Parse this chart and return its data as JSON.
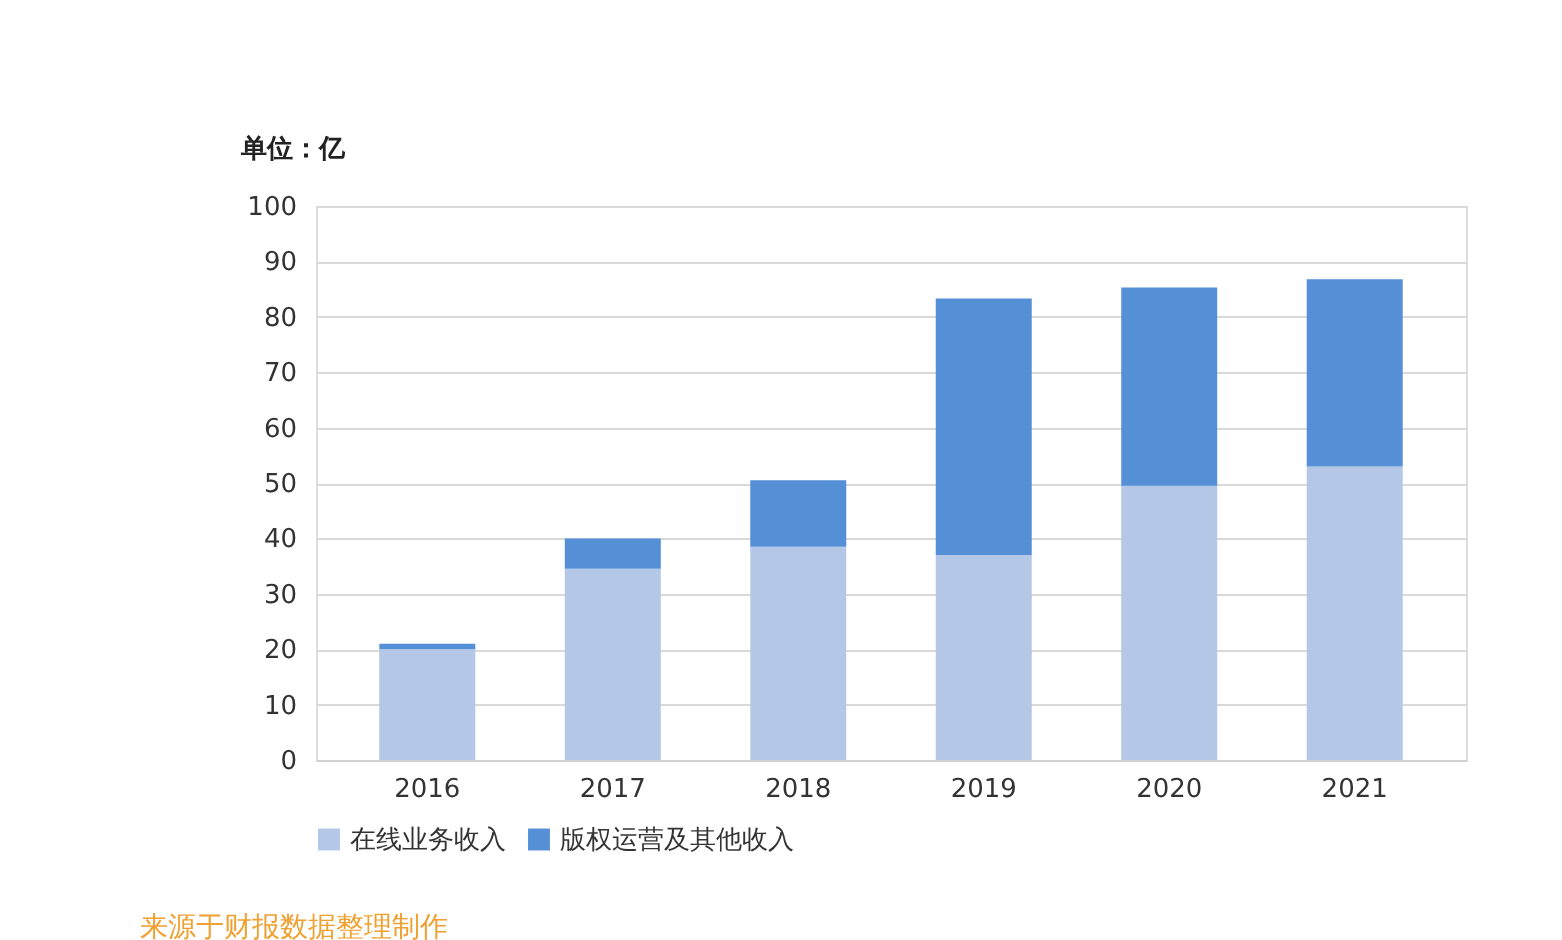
{
  "chart_data": {
    "type": "bar",
    "stacked": true,
    "ylabel": "单位：亿",
    "categories": [
      "2016",
      "2017",
      "2018",
      "2019",
      "2020",
      "2021"
    ],
    "series": [
      {
        "name": "在线业务收入",
        "color": "#b4c7e7",
        "values": [
          20,
          34.5,
          38.5,
          37,
          49.5,
          53
        ]
      },
      {
        "name": "版权运营及其他收入",
        "color": "#5590d6",
        "values": [
          1,
          5.5,
          12,
          46.3,
          35.8,
          33.8
        ]
      }
    ],
    "ylim": [
      0,
      100
    ],
    "yticks": [
      0,
      10,
      20,
      30,
      40,
      50,
      60,
      70,
      80,
      90,
      100
    ],
    "grid": "y",
    "legend": "bottom",
    "annotations": [
      "来源于财报数据整理制作"
    ]
  }
}
